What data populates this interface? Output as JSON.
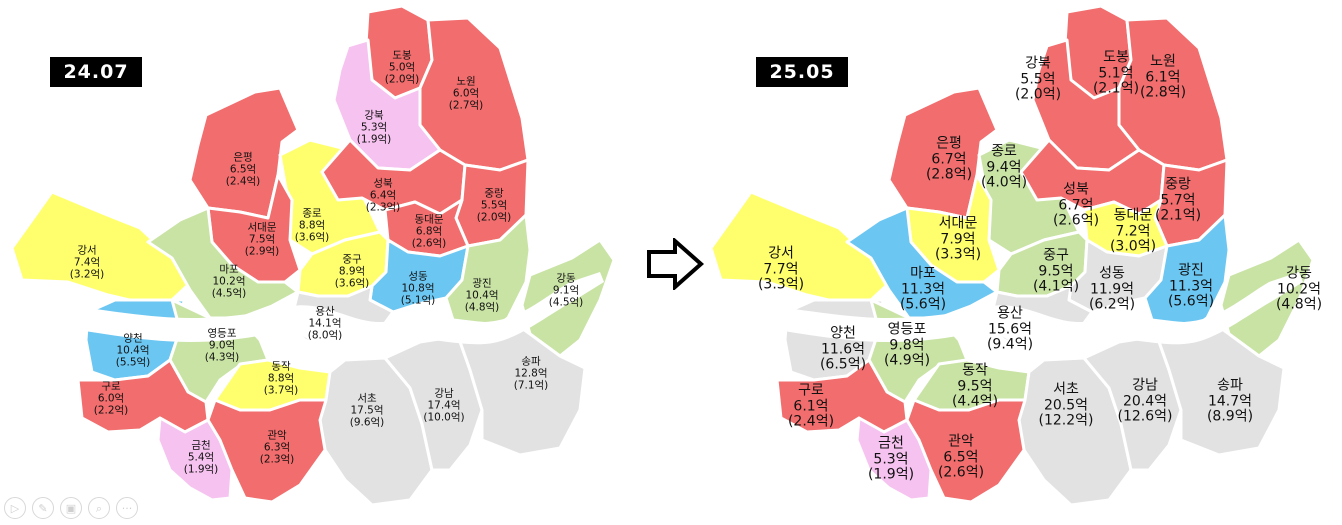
{
  "colors": {
    "red": "#f26d6d",
    "yellow": "#ffff6e",
    "green": "#c9e3a5",
    "blue": "#6cc6f2",
    "pink": "#f6c2f0",
    "gray": "#e2e2e2"
  },
  "arrow_icon": "right-arrow-icon",
  "controls": [
    {
      "name": "play-icon",
      "glyph": "▷"
    },
    {
      "name": "pen-icon",
      "glyph": "✎"
    },
    {
      "name": "slides-icon",
      "glyph": "▣"
    },
    {
      "name": "zoom-icon",
      "glyph": "⌕"
    },
    {
      "name": "more-icon",
      "glyph": "···"
    }
  ],
  "maps": [
    {
      "date": "24.07",
      "districts": [
        {
          "name": "도봉",
          "price": "5.0억",
          "sub": "(2.0억)",
          "color": "red"
        },
        {
          "name": "노원",
          "price": "6.0억",
          "sub": "(2.7억)",
          "color": "red"
        },
        {
          "name": "강북",
          "price": "5.3억",
          "sub": "(1.9억)",
          "color": "pink"
        },
        {
          "name": "은평",
          "price": "6.5억",
          "sub": "(2.4억)",
          "color": "red"
        },
        {
          "name": "종로",
          "price": "8.8억",
          "sub": "(3.6억)",
          "color": "yellow"
        },
        {
          "name": "성북",
          "price": "6.4억",
          "sub": "(2.3억)",
          "color": "red"
        },
        {
          "name": "중랑",
          "price": "5.5억",
          "sub": "(2.0억)",
          "color": "red"
        },
        {
          "name": "동대문",
          "price": "6.8억",
          "sub": "(2.6억)",
          "color": "red"
        },
        {
          "name": "서대문",
          "price": "7.5억",
          "sub": "(2.9억)",
          "color": "red"
        },
        {
          "name": "강서",
          "price": "7.4억",
          "sub": "(3.2억)",
          "color": "yellow"
        },
        {
          "name": "마포",
          "price": "10.2억",
          "sub": "(4.5억)",
          "color": "green"
        },
        {
          "name": "중구",
          "price": "8.9억",
          "sub": "(3.6억)",
          "color": "yellow"
        },
        {
          "name": "성동",
          "price": "10.8억",
          "sub": "(5.1억)",
          "color": "blue"
        },
        {
          "name": "광진",
          "price": "10.4억",
          "sub": "(4.8억)",
          "color": "green"
        },
        {
          "name": "강동",
          "price": "9.1억",
          "sub": "(4.5억)",
          "color": "green"
        },
        {
          "name": "용산",
          "price": "14.1억",
          "sub": "(8.0억)",
          "color": "gray"
        },
        {
          "name": "양천",
          "price": "10.4억",
          "sub": "(5.5억)",
          "color": "blue"
        },
        {
          "name": "영등포",
          "price": "9.0억",
          "sub": "(4.3억)",
          "color": "green"
        },
        {
          "name": "구로",
          "price": "6.0억",
          "sub": "(2.2억)",
          "color": "red"
        },
        {
          "name": "동작",
          "price": "8.8억",
          "sub": "(3.7억)",
          "color": "yellow"
        },
        {
          "name": "서초",
          "price": "17.5억",
          "sub": "(9.6억)",
          "color": "gray"
        },
        {
          "name": "강남",
          "price": "17.4억",
          "sub": "(10.0억)",
          "color": "gray"
        },
        {
          "name": "송파",
          "price": "12.8억",
          "sub": "(7.1억)",
          "color": "gray"
        },
        {
          "name": "금천",
          "price": "5.4억",
          "sub": "(1.9억)",
          "color": "pink"
        },
        {
          "name": "관악",
          "price": "6.3억",
          "sub": "(2.3억)",
          "color": "red"
        }
      ]
    },
    {
      "date": "25.05",
      "districts": [
        {
          "name": "도봉",
          "price": "5.1억",
          "sub": "(2.1억)",
          "color": "red"
        },
        {
          "name": "노원",
          "price": "6.1억",
          "sub": "(2.8억)",
          "color": "red"
        },
        {
          "name": "강북",
          "price": "5.5억",
          "sub": "(2.0억)",
          "color": "red"
        },
        {
          "name": "은평",
          "price": "6.7억",
          "sub": "(2.8억)",
          "color": "red"
        },
        {
          "name": "종로",
          "price": "9.4억",
          "sub": "(4.0억)",
          "color": "green"
        },
        {
          "name": "성북",
          "price": "6.7억",
          "sub": "(2.6억)",
          "color": "red"
        },
        {
          "name": "중랑",
          "price": "5.7억",
          "sub": "(2.1억)",
          "color": "red"
        },
        {
          "name": "동대문",
          "price": "7.2억",
          "sub": "(3.0억)",
          "color": "yellow"
        },
        {
          "name": "서대문",
          "price": "7.9억",
          "sub": "(3.3억)",
          "color": "yellow"
        },
        {
          "name": "강서",
          "price": "7.7억",
          "sub": "(3.3억)",
          "color": "yellow"
        },
        {
          "name": "마포",
          "price": "11.3억",
          "sub": "(5.6억)",
          "color": "blue"
        },
        {
          "name": "중구",
          "price": "9.5억",
          "sub": "(4.1억)",
          "color": "green"
        },
        {
          "name": "성동",
          "price": "11.9억",
          "sub": "(6.2억)",
          "color": "gray"
        },
        {
          "name": "광진",
          "price": "11.3억",
          "sub": "(5.6억)",
          "color": "blue"
        },
        {
          "name": "강동",
          "price": "10.2억",
          "sub": "(4.8억)",
          "color": "green"
        },
        {
          "name": "용산",
          "price": "15.6억",
          "sub": "(9.4억)",
          "color": "gray"
        },
        {
          "name": "양천",
          "price": "11.6억",
          "sub": "(6.5억)",
          "color": "gray"
        },
        {
          "name": "영등포",
          "price": "9.8억",
          "sub": "(4.9억)",
          "color": "green"
        },
        {
          "name": "구로",
          "price": "6.1억",
          "sub": "(2.4억)",
          "color": "red"
        },
        {
          "name": "동작",
          "price": "9.5억",
          "sub": "(4.4억)",
          "color": "green"
        },
        {
          "name": "서초",
          "price": "20.5억",
          "sub": "(12.2억)",
          "color": "gray"
        },
        {
          "name": "강남",
          "price": "20.4억",
          "sub": "(12.6억)",
          "color": "gray"
        },
        {
          "name": "송파",
          "price": "14.7억",
          "sub": "(8.9억)",
          "color": "gray"
        },
        {
          "name": "금천",
          "price": "5.3억",
          "sub": "(1.9억)",
          "color": "pink"
        },
        {
          "name": "관악",
          "price": "6.5억",
          "sub": "(2.6억)",
          "color": "red"
        }
      ]
    }
  ]
}
